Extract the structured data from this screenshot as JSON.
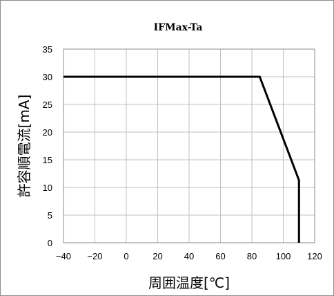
{
  "chart_data": {
    "type": "line",
    "title": "IFMax-Ta",
    "xlabel": "周囲温度[℃]",
    "ylabel": "許容順電流[mA]",
    "xlim": [
      -40,
      120
    ],
    "ylim": [
      0,
      35
    ],
    "xticks": [
      -40,
      -20,
      0,
      20,
      40,
      60,
      80,
      100,
      120
    ],
    "yticks": [
      0,
      5,
      10,
      15,
      20,
      25,
      30,
      35
    ],
    "grid": true,
    "series": [
      {
        "x": [
          -40,
          85,
          110,
          110
        ],
        "y": [
          30,
          30,
          11.3,
          0
        ]
      }
    ]
  }
}
